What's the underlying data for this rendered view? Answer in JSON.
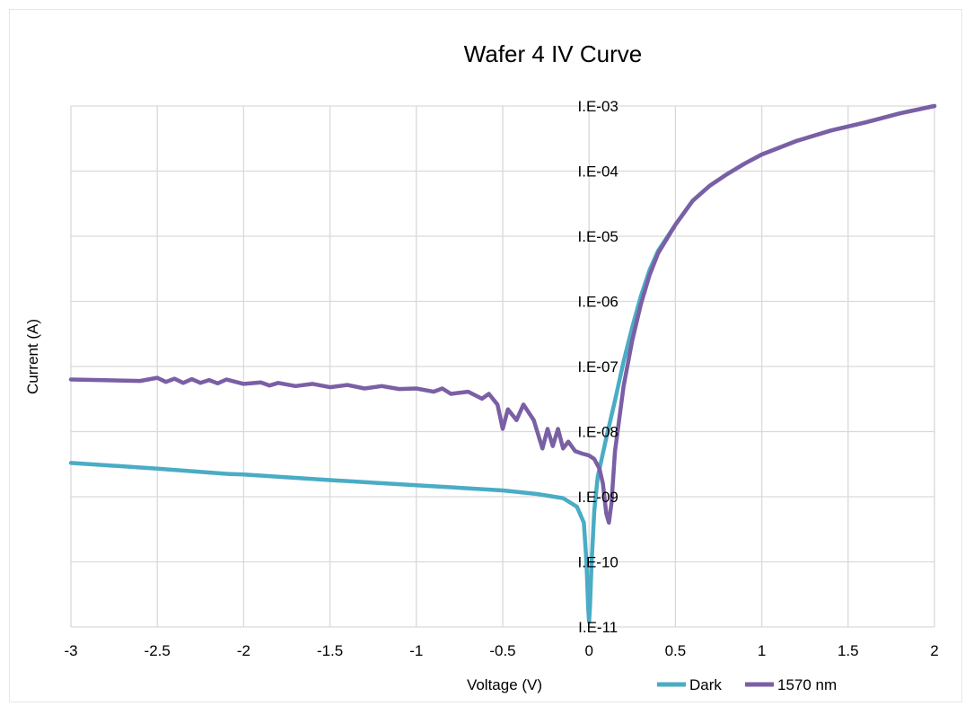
{
  "chart_data": {
    "type": "line",
    "title": "Wafer 4 IV Curve",
    "xlabel": "Voltage (V)",
    "ylabel": "Current (A)",
    "xlim": [
      -3,
      2
    ],
    "ylim": [
      1e-11,
      0.001
    ],
    "yscale": "log",
    "grid": true,
    "legend_position": "bottom-right",
    "x_ticks": [
      -3,
      -2.5,
      -2,
      -1.5,
      -1,
      -0.5,
      0,
      0.5,
      1,
      1.5,
      2
    ],
    "x_tick_labels": [
      "-3",
      "-2.5",
      "-2",
      "-1.5",
      "-1",
      "-0.5",
      "0",
      "0.5",
      "1",
      "1.5",
      "2"
    ],
    "y_ticks": [
      0.001,
      0.0001,
      1e-05,
      1e-06,
      1e-07,
      1e-08,
      1e-09,
      1e-10,
      1e-11
    ],
    "y_tick_labels": [
      "I.E-03",
      "I.E-04",
      "I.E-05",
      "I.E-06",
      "I.E-07",
      "I.E-08",
      "I.E-09",
      "I.E-10",
      "I.E-11"
    ],
    "series": [
      {
        "name": "Dark",
        "color": "#4aacc5",
        "points": [
          [
            -3,
            3.3e-09
          ],
          [
            -2.5,
            2.7e-09
          ],
          [
            -2.1,
            2.25e-09
          ],
          [
            -2.0,
            2.2e-09
          ],
          [
            -1.5,
            1.8e-09
          ],
          [
            -1.0,
            1.5e-09
          ],
          [
            -0.5,
            1.25e-09
          ],
          [
            -0.3,
            1.1e-09
          ],
          [
            -0.15,
            9.5e-10
          ],
          [
            -0.07,
            7e-10
          ],
          [
            -0.03,
            4e-10
          ],
          [
            -0.015,
            1e-10
          ],
          [
            -0.005,
            2e-11
          ],
          [
            0.0,
            1.2e-11
          ],
          [
            0.005,
            2e-11
          ],
          [
            0.015,
            1e-10
          ],
          [
            0.03,
            6e-10
          ],
          [
            0.05,
            2e-09
          ],
          [
            0.1,
            8e-09
          ],
          [
            0.15,
            3e-08
          ],
          [
            0.2,
            1.2e-07
          ],
          [
            0.25,
            4e-07
          ],
          [
            0.3,
            1.2e-06
          ],
          [
            0.35,
            3e-06
          ],
          [
            0.4,
            6e-06
          ],
          [
            0.5,
            1.5e-05
          ],
          [
            0.6,
            3.5e-05
          ],
          [
            0.7,
            6e-05
          ],
          [
            0.8,
            9e-05
          ],
          [
            0.9,
            0.00013
          ],
          [
            1.0,
            0.00018
          ],
          [
            1.2,
            0.00029
          ],
          [
            1.4,
            0.00042
          ],
          [
            1.6,
            0.00056
          ],
          [
            1.8,
            0.00077
          ],
          [
            2.0,
            0.001
          ]
        ]
      },
      {
        "name": "1570 nm",
        "color": "#7b5fa5",
        "points": [
          [
            -3,
            6.3e-08
          ],
          [
            -2.6,
            6e-08
          ],
          [
            -2.5,
            6.7e-08
          ],
          [
            -2.45,
            5.8e-08
          ],
          [
            -2.4,
            6.5e-08
          ],
          [
            -2.35,
            5.6e-08
          ],
          [
            -2.3,
            6.4e-08
          ],
          [
            -2.25,
            5.6e-08
          ],
          [
            -2.2,
            6.2e-08
          ],
          [
            -2.15,
            5.5e-08
          ],
          [
            -2.1,
            6.3e-08
          ],
          [
            -2.0,
            5.4e-08
          ],
          [
            -1.9,
            5.7e-08
          ],
          [
            -1.85,
            5.1e-08
          ],
          [
            -1.8,
            5.6e-08
          ],
          [
            -1.7,
            5e-08
          ],
          [
            -1.6,
            5.4e-08
          ],
          [
            -1.5,
            4.8e-08
          ],
          [
            -1.4,
            5.2e-08
          ],
          [
            -1.3,
            4.6e-08
          ],
          [
            -1.2,
            5e-08
          ],
          [
            -1.1,
            4.5e-08
          ],
          [
            -1.0,
            4.6e-08
          ],
          [
            -0.9,
            4.1e-08
          ],
          [
            -0.85,
            4.6e-08
          ],
          [
            -0.8,
            3.8e-08
          ],
          [
            -0.7,
            4.1e-08
          ],
          [
            -0.62,
            3.2e-08
          ],
          [
            -0.58,
            3.8e-08
          ],
          [
            -0.53,
            2.6e-08
          ],
          [
            -0.5,
            1.1e-08
          ],
          [
            -0.47,
            2.2e-08
          ],
          [
            -0.42,
            1.5e-08
          ],
          [
            -0.38,
            2.6e-08
          ],
          [
            -0.32,
            1.5e-08
          ],
          [
            -0.3,
            1e-08
          ],
          [
            -0.27,
            5.5e-09
          ],
          [
            -0.24,
            1.1e-08
          ],
          [
            -0.21,
            6e-09
          ],
          [
            -0.18,
            1.1e-08
          ],
          [
            -0.15,
            5.5e-09
          ],
          [
            -0.12,
            7e-09
          ],
          [
            -0.08,
            5e-09
          ],
          [
            -0.04,
            4.6e-09
          ],
          [
            0.0,
            4.3e-09
          ],
          [
            0.03,
            3.8e-09
          ],
          [
            0.06,
            2.7e-09
          ],
          [
            0.08,
            1.6e-09
          ],
          [
            0.1,
            5.5e-10
          ],
          [
            0.115,
            4e-10
          ],
          [
            0.13,
            8e-10
          ],
          [
            0.15,
            5e-09
          ],
          [
            0.2,
            5e-08
          ],
          [
            0.25,
            2.5e-07
          ],
          [
            0.3,
            9e-07
          ],
          [
            0.35,
            2.5e-06
          ],
          [
            0.4,
            5.5e-06
          ],
          [
            0.5,
            1.5e-05
          ],
          [
            0.6,
            3.5e-05
          ],
          [
            0.7,
            6e-05
          ],
          [
            0.8,
            9e-05
          ],
          [
            0.9,
            0.00013
          ],
          [
            1.0,
            0.00018
          ],
          [
            1.2,
            0.00029
          ],
          [
            1.4,
            0.00042
          ],
          [
            1.6,
            0.00056
          ],
          [
            1.8,
            0.00077
          ],
          [
            2.0,
            0.001
          ]
        ]
      }
    ]
  }
}
